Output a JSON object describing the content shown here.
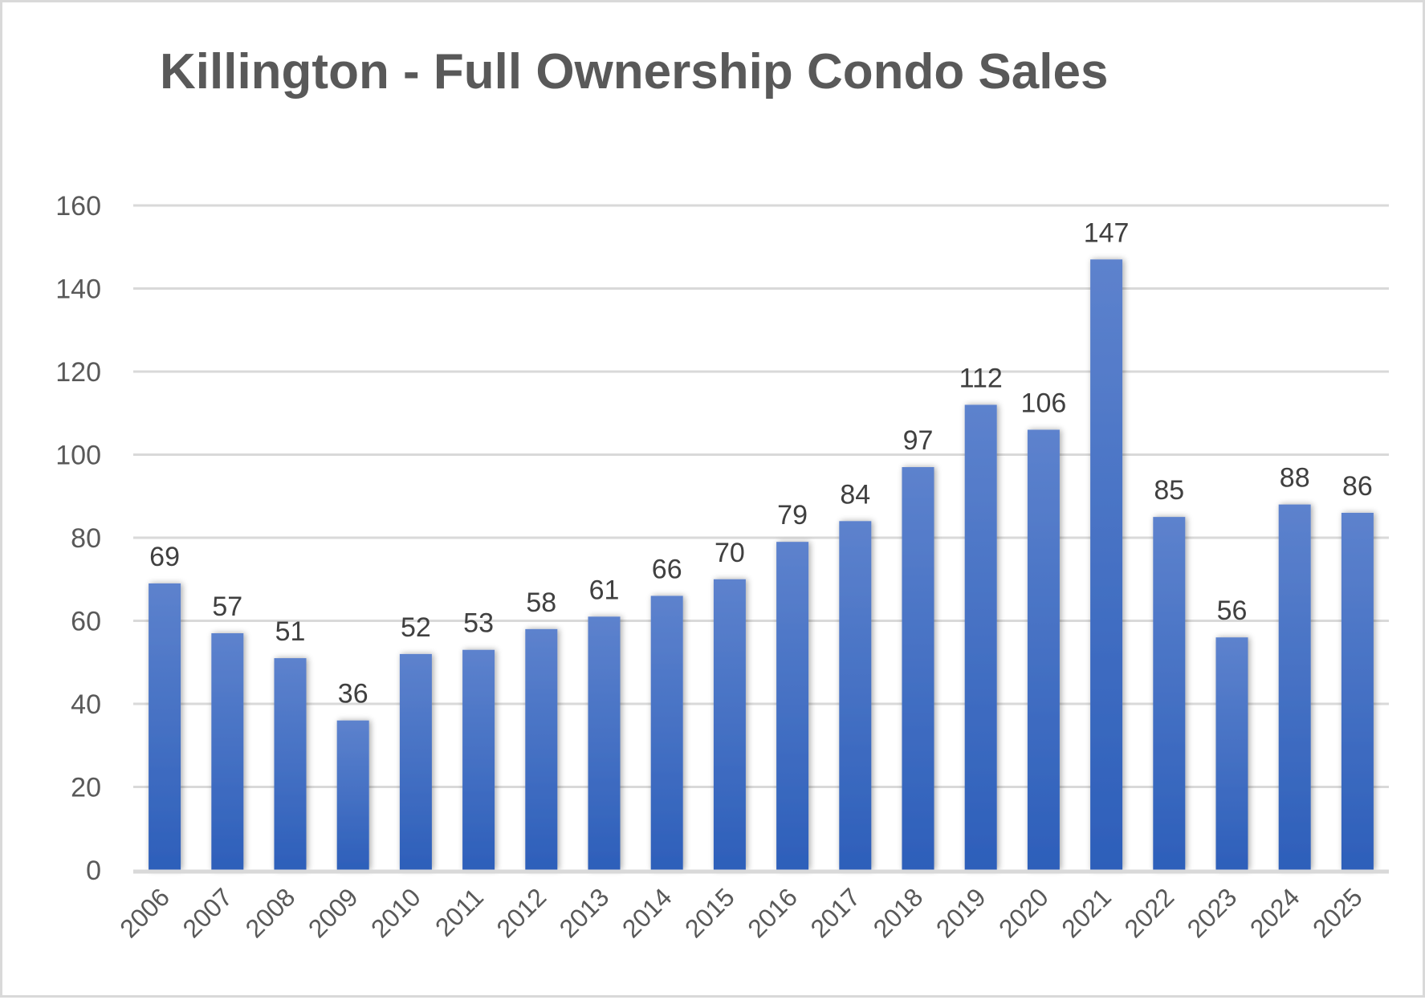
{
  "chart_data": {
    "type": "bar",
    "title": "Killington - Full Ownership Condo Sales",
    "xlabel": "",
    "ylabel": "",
    "categories": [
      "2006",
      "2007",
      "2008",
      "2009",
      "2010",
      "2011",
      "2012",
      "2013",
      "2014",
      "2015",
      "2016",
      "2017",
      "2018",
      "2019",
      "2020",
      "2021",
      "2022",
      "2023",
      "2024",
      "2025"
    ],
    "values": [
      69,
      57,
      51,
      36,
      52,
      53,
      58,
      61,
      66,
      70,
      79,
      84,
      97,
      112,
      106,
      147,
      85,
      56,
      88,
      86
    ],
    "ylim": [
      0,
      160
    ],
    "yticks": [
      0,
      20,
      40,
      60,
      80,
      100,
      120,
      140,
      160
    ],
    "grid": true,
    "legend": "none",
    "data_labels": true,
    "x_tick_rotation_deg": -45,
    "colors": {
      "bar_top": "#5d82cd",
      "bar_bottom": "#2d5fba",
      "gridline": "#d9d9d9",
      "axis_text": "#595959",
      "data_label_text": "#404040",
      "title_text": "#595959"
    }
  }
}
